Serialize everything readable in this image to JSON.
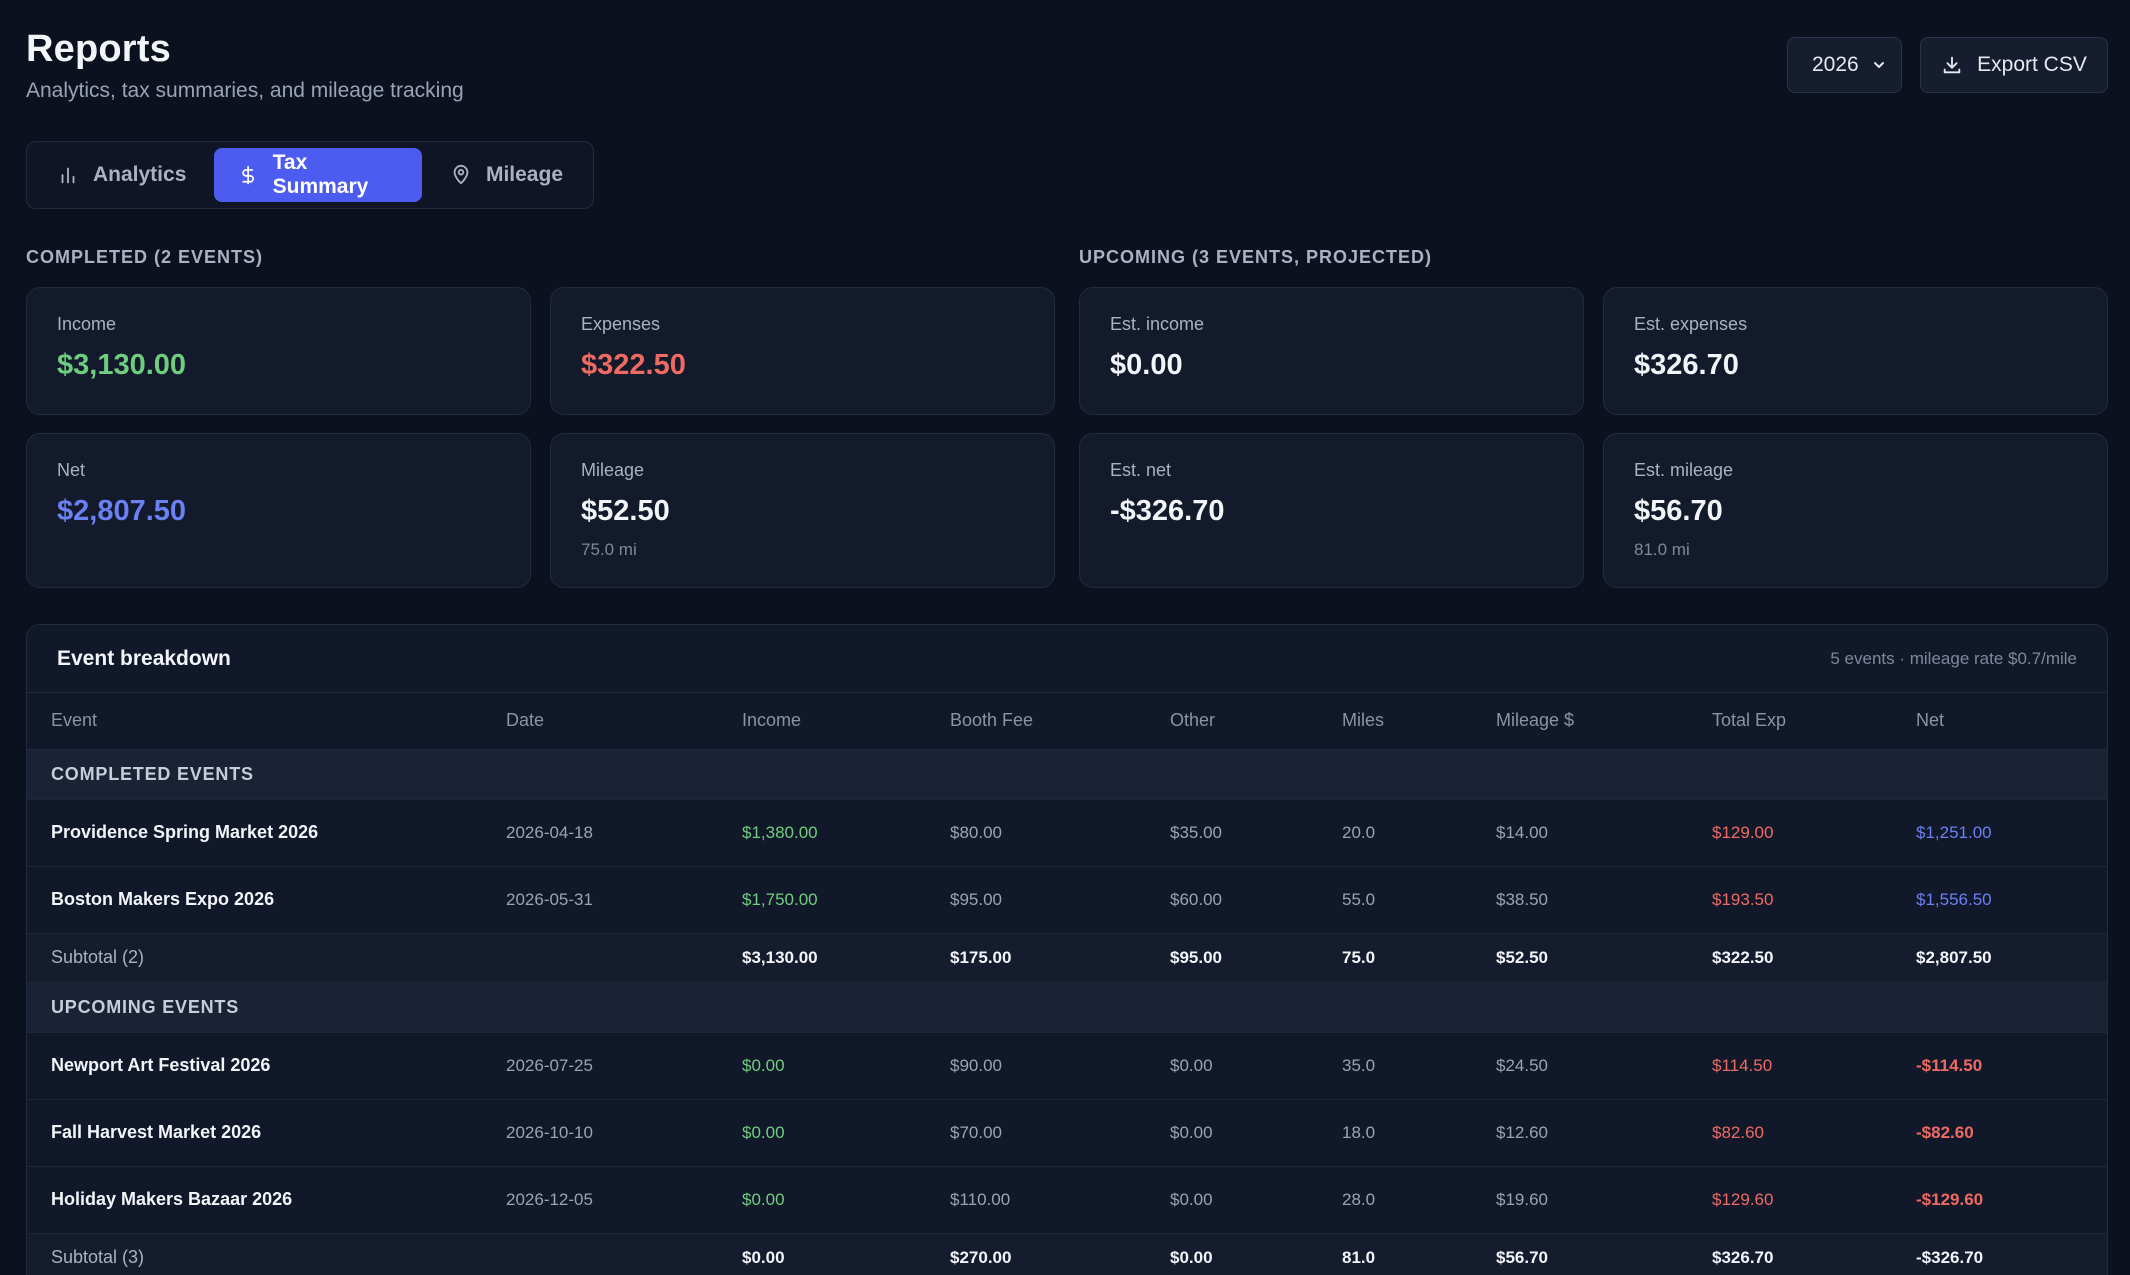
{
  "header": {
    "title": "Reports",
    "subtitle": "Analytics, tax summaries, and mileage tracking"
  },
  "toolbar": {
    "year": "2026",
    "export_label": "Export CSV"
  },
  "tabs": [
    {
      "label": "Analytics",
      "icon": "bar-chart-icon"
    },
    {
      "label": "Tax Summary",
      "icon": "dollar-icon",
      "active": true
    },
    {
      "label": "Mileage",
      "icon": "map-pin-icon"
    }
  ],
  "completed": {
    "label": "COMPLETED (2 EVENTS)",
    "income": {
      "label": "Income",
      "value": "$3,130.00"
    },
    "expenses": {
      "label": "Expenses",
      "value": "$322.50"
    },
    "net": {
      "label": "Net",
      "value": "$2,807.50"
    },
    "mileage": {
      "label": "Mileage",
      "value": "$52.50",
      "sub": "75.0 mi"
    }
  },
  "upcoming": {
    "label": "UPCOMING (3 EVENTS, PROJECTED)",
    "income": {
      "label": "Est. income",
      "value": "$0.00"
    },
    "expenses": {
      "label": "Est. expenses",
      "value": "$326.70"
    },
    "net": {
      "label": "Est. net",
      "value": "-$326.70"
    },
    "mileage": {
      "label": "Est. mileage",
      "value": "$56.70",
      "sub": "81.0 mi"
    }
  },
  "breakdown": {
    "title": "Event breakdown",
    "meta": "5 events · mileage rate $0.7/mile",
    "columns": [
      "Event",
      "Date",
      "Income",
      "Booth Fee",
      "Other",
      "Miles",
      "Mileage $",
      "Total Exp",
      "Net"
    ],
    "completed_group": "COMPLETED EVENTS",
    "completed_rows": [
      [
        "Providence Spring Market 2026",
        "2026-04-18",
        "$1,380.00",
        "$80.00",
        "$35.00",
        "20.0",
        "$14.00",
        "$129.00",
        "$1,251.00"
      ],
      [
        "Boston Makers Expo 2026",
        "2026-05-31",
        "$1,750.00",
        "$95.00",
        "$60.00",
        "55.0",
        "$38.50",
        "$193.50",
        "$1,556.50"
      ]
    ],
    "completed_subtotal": [
      "Subtotal (2)",
      "",
      "$3,130.00",
      "$175.00",
      "$95.00",
      "75.0",
      "$52.50",
      "$322.50",
      "$2,807.50"
    ],
    "upcoming_group": "UPCOMING EVENTS",
    "upcoming_rows": [
      [
        "Newport Art Festival 2026",
        "2026-07-25",
        "$0.00",
        "$90.00",
        "$0.00",
        "35.0",
        "$24.50",
        "$114.50",
        "-$114.50"
      ],
      [
        "Fall Harvest Market 2026",
        "2026-10-10",
        "$0.00",
        "$70.00",
        "$0.00",
        "18.0",
        "$12.60",
        "$82.60",
        "-$82.60"
      ],
      [
        "Holiday Makers Bazaar 2026",
        "2026-12-05",
        "$0.00",
        "$110.00",
        "$0.00",
        "28.0",
        "$19.60",
        "$129.60",
        "-$129.60"
      ]
    ],
    "upcoming_subtotal": [
      "Subtotal (3)",
      "",
      "$0.00",
      "$270.00",
      "$0.00",
      "81.0",
      "$56.70",
      "$326.70",
      "-$326.70"
    ]
  },
  "colors": {
    "background": "#0c1120",
    "accent": "#4c5cf0",
    "income": "#6fce7e",
    "expense": "#ef6b62",
    "net": "#6a80f3"
  }
}
